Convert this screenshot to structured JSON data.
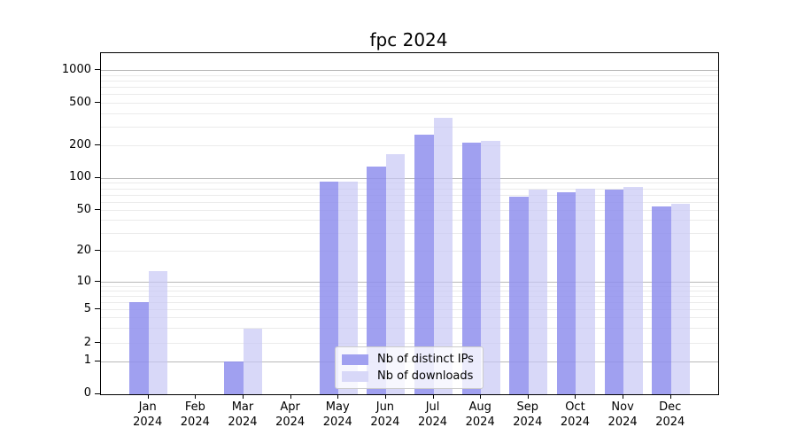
{
  "title": "fpc 2024",
  "chart_data": {
    "type": "bar",
    "title": "fpc 2024",
    "categories": [
      "Jan 2024",
      "Feb 2024",
      "Mar 2024",
      "Apr 2024",
      "May 2024",
      "Jun 2024",
      "Jul 2024",
      "Aug 2024",
      "Sep 2024",
      "Oct 2024",
      "Nov 2024",
      "Dec 2024"
    ],
    "series": [
      {
        "name": "Nb of distinct IPs",
        "color": "#a0a0f0",
        "values": [
          6,
          0,
          1,
          0,
          93,
          128,
          256,
          213,
          68,
          74,
          79,
          55
        ]
      },
      {
        "name": "Nb of downloads",
        "color": "#d8d8f8",
        "values": [
          13,
          0,
          3,
          0,
          94,
          168,
          368,
          222,
          78,
          80,
          84,
          58
        ]
      }
    ],
    "xlabel": "",
    "ylabel": "",
    "yscale": "symlog",
    "yticks": [
      0,
      1,
      2,
      5,
      10,
      20,
      50,
      100,
      200,
      500,
      1000
    ],
    "ylim": [
      0,
      1450
    ],
    "grid": true,
    "legend_position": "lower center"
  }
}
